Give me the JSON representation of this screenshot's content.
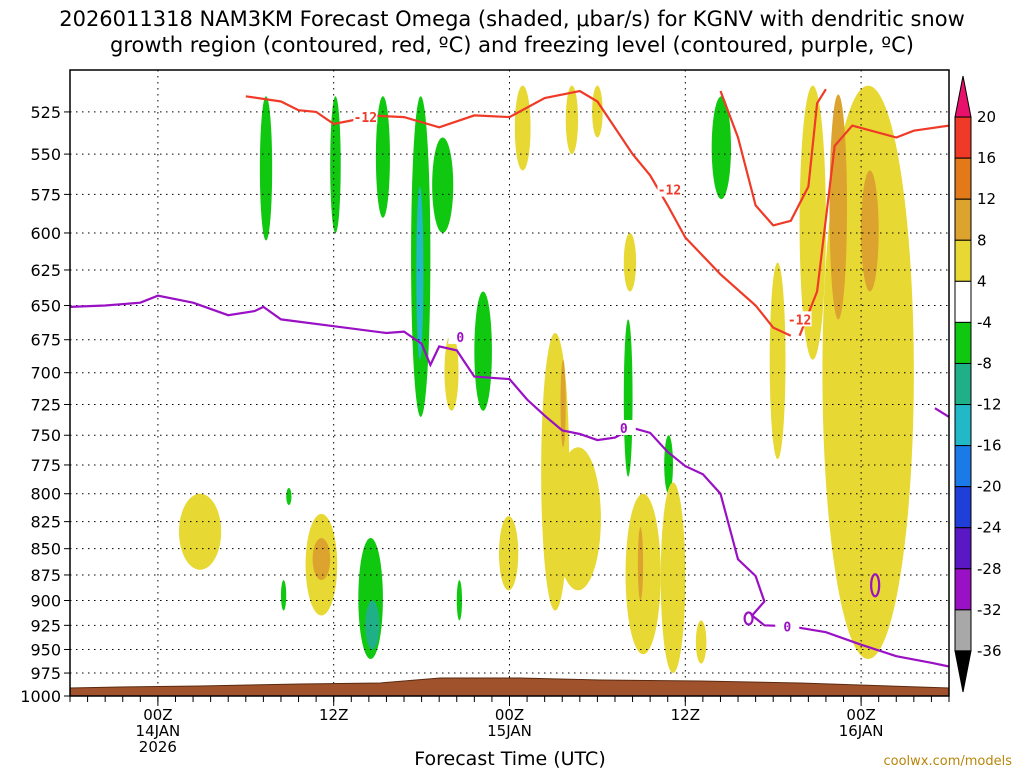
{
  "chart_data": {
    "type": "contour-cross-section",
    "title_line1": "2026011318 NAM3KM Forecast Omega (shaded, μbar/s) for KGNV with dendritic snow",
    "title_line2": "growth region (contoured, red, ºC) and freezing level (contoured, purple, ºC)",
    "xlabel": "Forecast Time (UTC)",
    "credit": "coolwx.com/models",
    "x_range_hours": [
      -5,
      45
    ],
    "y_range_mb": [
      1000,
      510
    ],
    "y_levels": [
      525,
      550,
      575,
      600,
      625,
      650,
      675,
      700,
      725,
      750,
      775,
      800,
      825,
      850,
      875,
      900,
      925,
      950,
      975,
      1000
    ],
    "x_ticks": [
      {
        "hour": 0,
        "label": "00Z",
        "sub1": "14JAN",
        "sub2": "2026"
      },
      {
        "hour": 10,
        "label": "12Z",
        "sub1": "",
        "sub2": ""
      },
      {
        "hour": 20,
        "label": "00Z",
        "sub1": "15JAN",
        "sub2": ""
      },
      {
        "hour": 30,
        "label": "12Z",
        "sub1": "",
        "sub2": ""
      },
      {
        "hour": 40,
        "label": "00Z",
        "sub1": "16JAN",
        "sub2": ""
      }
    ],
    "colorbar": {
      "levels": [
        "20",
        "16",
        "12",
        "8",
        "4",
        "-4",
        "-8",
        "-12",
        "-16",
        "-20",
        "-24",
        "-28",
        "-32",
        "-36"
      ],
      "colors": [
        "#e8106a",
        "#f03a28",
        "#e27a1a",
        "#dca42e",
        "#e8d834",
        "#ffffff",
        "#10c810",
        "#20b088",
        "#22b8c8",
        "#1a7ae8",
        "#1f3fd8",
        "#5a17c4",
        "#9a10c4",
        "#a8a8a8",
        "#000000"
      ]
    },
    "freezing_level_label": "0",
    "freezing_level_0C": [
      {
        "h": -5,
        "p": 651
      },
      {
        "h": -3,
        "p": 650
      },
      {
        "h": -1,
        "p": 648
      },
      {
        "h": 0,
        "p": 643
      },
      {
        "h": 2,
        "p": 648
      },
      {
        "h": 4,
        "p": 657
      },
      {
        "h": 5.5,
        "p": 654
      },
      {
        "h": 6,
        "p": 651
      },
      {
        "h": 7,
        "p": 660
      },
      {
        "h": 10,
        "p": 665
      },
      {
        "h": 13,
        "p": 670
      },
      {
        "h": 14,
        "p": 669
      },
      {
        "h": 15,
        "p": 678
      },
      {
        "h": 15.5,
        "p": 694
      },
      {
        "h": 16,
        "p": 680
      },
      {
        "h": 17,
        "p": 683
      },
      {
        "h": 18,
        "p": 703
      },
      {
        "h": 20,
        "p": 705
      },
      {
        "h": 21,
        "p": 721
      },
      {
        "h": 22,
        "p": 734
      },
      {
        "h": 23,
        "p": 746
      },
      {
        "h": 24,
        "p": 749
      },
      {
        "h": 25,
        "p": 754
      },
      {
        "h": 26,
        "p": 752
      },
      {
        "h": 27,
        "p": 744
      },
      {
        "h": 28,
        "p": 748
      },
      {
        "h": 29,
        "p": 764
      },
      {
        "h": 30,
        "p": 776
      },
      {
        "h": 31,
        "p": 783
      },
      {
        "h": 32,
        "p": 800
      },
      {
        "h": 33,
        "p": 860
      },
      {
        "h": 34,
        "p": 876
      },
      {
        "h": 34.5,
        "p": 901
      },
      {
        "h": 33.8,
        "p": 915
      },
      {
        "h": 34.5,
        "p": 925
      },
      {
        "h": 36,
        "p": 926
      },
      {
        "h": 38,
        "p": 932
      },
      {
        "h": 40,
        "p": 945
      },
      {
        "h": 42,
        "p": 957
      },
      {
        "h": 44,
        "p": 964
      },
      {
        "h": 45,
        "p": 968
      }
    ],
    "dgz_label": "-12",
    "dgz_minus12C": [
      {
        "h": 5.0,
        "p": 516
      },
      {
        "h": 7,
        "p": 519
      },
      {
        "h": 8,
        "p": 524
      },
      {
        "h": 9,
        "p": 525
      },
      {
        "h": 10,
        "p": 532
      },
      {
        "h": 11,
        "p": 530
      },
      {
        "h": 12,
        "p": 527
      },
      {
        "h": 14,
        "p": 528
      },
      {
        "h": 16,
        "p": 534
      },
      {
        "h": 18,
        "p": 527
      },
      {
        "h": 20,
        "p": 528
      },
      {
        "h": 22,
        "p": 517
      },
      {
        "h": 24,
        "p": 513
      },
      {
        "h": 25,
        "p": 519
      },
      {
        "h": 27,
        "p": 550
      },
      {
        "h": 28,
        "p": 563
      },
      {
        "h": 29,
        "p": 582
      },
      {
        "h": 30,
        "p": 603
      },
      {
        "h": 32,
        "p": 628
      },
      {
        "h": 34,
        "p": 650
      },
      {
        "h": 35,
        "p": 666
      },
      {
        "h": 36,
        "p": 672
      }
    ],
    "dgz_minus12C_b": [
      {
        "h": 32,
        "p": 513
      },
      {
        "h": 33,
        "p": 540
      },
      {
        "h": 34,
        "p": 582
      },
      {
        "h": 35,
        "p": 595
      },
      {
        "h": 36,
        "p": 592
      },
      {
        "h": 37,
        "p": 570
      },
      {
        "h": 37.5,
        "p": 520
      },
      {
        "h": 38,
        "p": 512
      }
    ],
    "dgz_minus12C_c": [
      {
        "h": 36.5,
        "p": 672
      },
      {
        "h": 37.5,
        "p": 640
      },
      {
        "h": 38.5,
        "p": 545
      },
      {
        "h": 39.5,
        "p": 533
      },
      {
        "h": 42,
        "p": 540
      },
      {
        "h": 43,
        "p": 536
      },
      {
        "h": 45,
        "p": 533
      }
    ],
    "omega_shapes": [
      {
        "c": "#10c810",
        "h": [
          5.8,
          6.5
        ],
        "p": [
          516,
          605
        ]
      },
      {
        "c": "#10c810",
        "h": [
          9.8,
          10.4
        ],
        "p": [
          516,
          600
        ]
      },
      {
        "c": "#10c810",
        "h": [
          12.4,
          13.2
        ],
        "p": [
          516,
          590
        ]
      },
      {
        "c": "#10c810",
        "h": [
          14.4,
          15.5
        ],
        "p": [
          516,
          735
        ]
      },
      {
        "c": "#22b8c8",
        "h": [
          14.7,
          15.1
        ],
        "p": [
          570,
          690
        ]
      },
      {
        "c": "#10c810",
        "h": [
          15.6,
          16.8
        ],
        "p": [
          540,
          600
        ]
      },
      {
        "c": "#10c810",
        "h": [
          18.0,
          19.0
        ],
        "p": [
          640,
          730
        ]
      },
      {
        "c": "#10c810",
        "h": [
          31.5,
          32.6
        ],
        "p": [
          516,
          578
        ]
      },
      {
        "c": "#10c810",
        "h": [
          26.5,
          27.0
        ],
        "p": [
          660,
          785
        ]
      },
      {
        "c": "#10c810",
        "h": [
          28.8,
          29.3
        ],
        "p": [
          750,
          800
        ]
      },
      {
        "c": "#10c810",
        "h": [
          11.4,
          12.8
        ],
        "p": [
          840,
          960
        ]
      },
      {
        "c": "#20b088",
        "h": [
          11.8,
          12.6
        ],
        "p": [
          900,
          950
        ]
      },
      {
        "c": "#10c810",
        "h": [
          7.3,
          7.6
        ],
        "p": [
          795,
          810
        ]
      },
      {
        "c": "#10c810",
        "h": [
          7.0,
          7.3
        ],
        "p": [
          880,
          910
        ]
      },
      {
        "c": "#10c810",
        "h": [
          17.0,
          17.3
        ],
        "p": [
          880,
          920
        ]
      },
      {
        "c": "#e8d834",
        "h": [
          1.2,
          3.6
        ],
        "p": [
          800,
          870
        ]
      },
      {
        "c": "#e8d834",
        "h": [
          8.4,
          10.2
        ],
        "p": [
          818,
          915
        ]
      },
      {
        "c": "#dca42e",
        "h": [
          8.8,
          9.8
        ],
        "p": [
          840,
          880
        ]
      },
      {
        "c": "#e8d834",
        "h": [
          16.3,
          17.1
        ],
        "p": [
          670,
          730
        ]
      },
      {
        "c": "#e8d834",
        "h": [
          19.4,
          20.5
        ],
        "p": [
          820,
          890
        ]
      },
      {
        "c": "#e8d834",
        "h": [
          21.8,
          23.4
        ],
        "p": [
          670,
          910
        ]
      },
      {
        "c": "#e8d834",
        "h": [
          22.6,
          25.2
        ],
        "p": [
          760,
          890
        ]
      },
      {
        "c": "#dca42e",
        "h": [
          22.9,
          23.2
        ],
        "p": [
          690,
          760
        ]
      },
      {
        "c": "#e8d834",
        "h": [
          26.6,
          28.6
        ],
        "p": [
          800,
          955
        ]
      },
      {
        "c": "#dca42e",
        "h": [
          27.3,
          27.6
        ],
        "p": [
          830,
          900
        ]
      },
      {
        "c": "#e8d834",
        "h": [
          28.6,
          30.0
        ],
        "p": [
          790,
          975
        ]
      },
      {
        "c": "#e8d834",
        "h": [
          30.6,
          31.2
        ],
        "p": [
          920,
          965
        ]
      },
      {
        "c": "#e8d834",
        "h": [
          20.3,
          21.2
        ],
        "p": [
          510,
          560
        ]
      },
      {
        "c": "#e8d834",
        "h": [
          23.2,
          23.9
        ],
        "p": [
          510,
          550
        ]
      },
      {
        "c": "#e8d834",
        "h": [
          24.7,
          25.3
        ],
        "p": [
          510,
          540
        ]
      },
      {
        "c": "#e8d834",
        "h": [
          26.5,
          27.2
        ],
        "p": [
          600,
          640
        ]
      },
      {
        "c": "#e8d834",
        "h": [
          34.8,
          35.7
        ],
        "p": [
          620,
          770
        ]
      },
      {
        "c": "#e8d834",
        "h": [
          36.5,
          38.0
        ],
        "p": [
          510,
          690
        ]
      },
      {
        "c": "#e8d834",
        "h": [
          37.8,
          43.0
        ],
        "p": [
          510,
          960
        ]
      },
      {
        "c": "#dca42e",
        "h": [
          38.2,
          39.2
        ],
        "p": [
          515,
          660
        ]
      },
      {
        "c": "#dca42e",
        "h": [
          40.0,
          41.0
        ],
        "p": [
          560,
          640
        ]
      }
    ]
  }
}
